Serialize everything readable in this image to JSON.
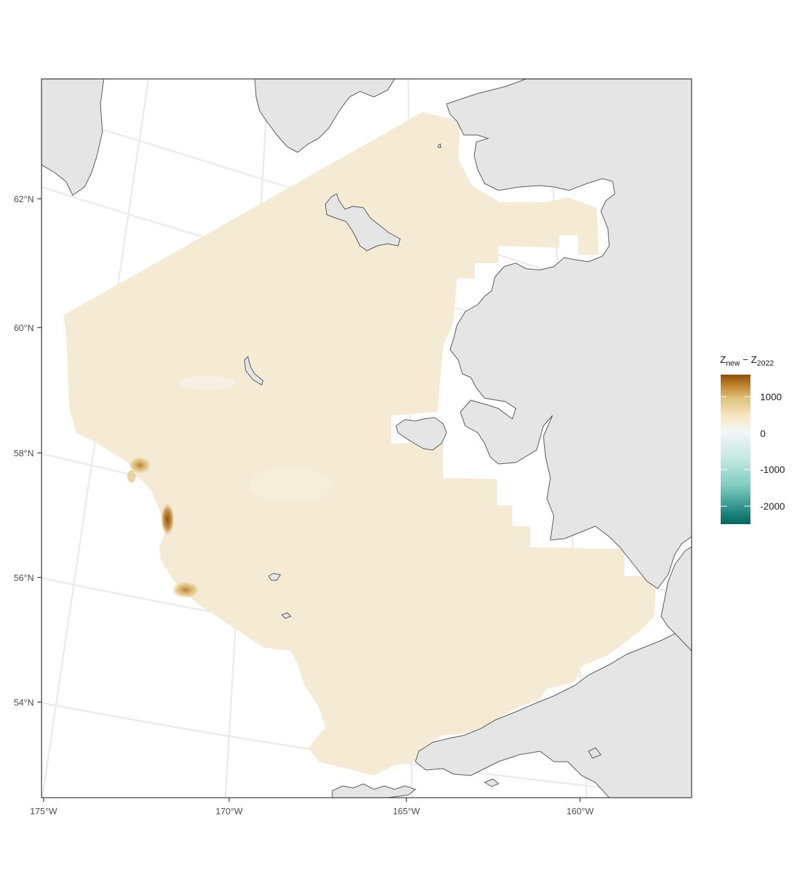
{
  "map": {
    "y_axis_labels": [
      "62°N",
      "60°N",
      "58°N",
      "56°N",
      "54°N"
    ],
    "x_axis_labels": [
      "175°W",
      "170°W",
      "165°W",
      "160°W"
    ],
    "colors": {
      "land": "#e5e5e5",
      "land_stroke": "#555555",
      "graticule": "#ebebeb",
      "surface_base": "#f5ebd5",
      "panel_border": "#333333"
    }
  },
  "legend": {
    "title_main": "Z",
    "title_sub_new": "new",
    "title_minus": " − Z",
    "title_sub_year": "2022",
    "labels": [
      "1000",
      "0",
      "-1000",
      "-2000"
    ],
    "range": [
      -2700,
      1550
    ],
    "colors": [
      "#01665e",
      "#35978f",
      "#80cdc1",
      "#c7eae5",
      "#f5f5f5",
      "#f6e8c3",
      "#dfc27d",
      "#bf812d",
      "#8c510a"
    ]
  }
}
